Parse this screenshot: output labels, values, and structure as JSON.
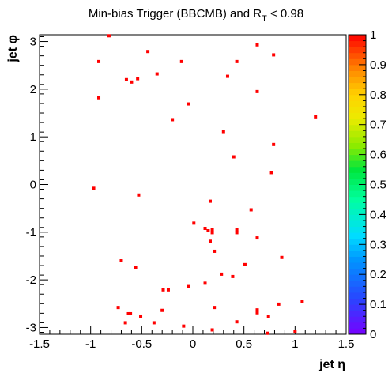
{
  "chart_data": {
    "type": "scatter",
    "title": {
      "prefix": "Min-bias Trigger (BBCMB) and R",
      "subscript": "T",
      "suffix": " < 0.98"
    },
    "xlabel": "jet η",
    "ylabel": "jet φ",
    "xlim": [
      -1.5,
      1.5
    ],
    "ylim": [
      -3.1416,
      3.1416
    ],
    "x_ticks": [
      -1.5,
      -1,
      -0.5,
      0,
      0.5,
      1,
      1.5
    ],
    "y_ticks": [
      -3,
      -2,
      -1,
      0,
      1,
      2,
      3
    ],
    "z_scale": {
      "min": 0,
      "max": 1,
      "ticks": [
        0,
        0.1,
        0.2,
        0.3,
        0.4,
        0.5,
        0.6,
        0.7,
        0.8,
        0.9,
        1
      ]
    },
    "grid": false,
    "marker_color": "#ff0000",
    "points": [
      {
        "x": -0.82,
        "y": 3.12
      },
      {
        "x": -0.92,
        "y": 2.58
      },
      {
        "x": -0.44,
        "y": 2.79
      },
      {
        "x": -0.11,
        "y": 2.58
      },
      {
        "x": 0.43,
        "y": 2.58
      },
      {
        "x": 0.63,
        "y": 2.93
      },
      {
        "x": 0.79,
        "y": 2.72
      },
      {
        "x": -0.65,
        "y": 2.2
      },
      {
        "x": -0.6,
        "y": 2.15
      },
      {
        "x": -0.54,
        "y": 2.22
      },
      {
        "x": -0.35,
        "y": 2.32
      },
      {
        "x": 0.34,
        "y": 2.27
      },
      {
        "x": -0.92,
        "y": 1.82
      },
      {
        "x": 0.63,
        "y": 1.95
      },
      {
        "x": -0.04,
        "y": 1.69
      },
      {
        "x": -0.2,
        "y": 1.36
      },
      {
        "x": 1.2,
        "y": 1.42
      },
      {
        "x": 0.3,
        "y": 1.11
      },
      {
        "x": 0.79,
        "y": 0.84
      },
      {
        "x": 0.4,
        "y": 0.58
      },
      {
        "x": 0.77,
        "y": 0.25
      },
      {
        "x": -0.97,
        "y": -0.08
      },
      {
        "x": -0.53,
        "y": -0.22
      },
      {
        "x": 0.17,
        "y": -0.35
      },
      {
        "x": 0.57,
        "y": -0.53
      },
      {
        "x": 0.01,
        "y": -0.81
      },
      {
        "x": 0.12,
        "y": -0.92
      },
      {
        "x": 0.15,
        "y": -0.97
      },
      {
        "x": 0.19,
        "y": -0.95
      },
      {
        "x": 0.19,
        "y": -1.01
      },
      {
        "x": 0.43,
        "y": -0.95
      },
      {
        "x": 0.43,
        "y": -1.01
      },
      {
        "x": 0.17,
        "y": -1.19
      },
      {
        "x": 0.63,
        "y": -1.12
      },
      {
        "x": 0.21,
        "y": -1.4
      },
      {
        "x": 0.51,
        "y": -1.68
      },
      {
        "x": -0.7,
        "y": -1.6
      },
      {
        "x": 0.87,
        "y": -1.53
      },
      {
        "x": -0.56,
        "y": -1.74
      },
      {
        "x": 0.28,
        "y": -1.88
      },
      {
        "x": 0.39,
        "y": -1.93
      },
      {
        "x": 0.12,
        "y": -2.07
      },
      {
        "x": -0.04,
        "y": -2.14
      },
      {
        "x": -0.29,
        "y": -2.21
      },
      {
        "x": -0.24,
        "y": -2.21
      },
      {
        "x": 1.07,
        "y": -2.46
      },
      {
        "x": 0.84,
        "y": -2.51
      },
      {
        "x": -0.73,
        "y": -2.58
      },
      {
        "x": 0.21,
        "y": -2.58
      },
      {
        "x": 0.63,
        "y": -2.63
      },
      {
        "x": 0.63,
        "y": -2.69
      },
      {
        "x": -0.3,
        "y": -2.64
      },
      {
        "x": -0.63,
        "y": -2.71
      },
      {
        "x": -0.61,
        "y": -2.71
      },
      {
        "x": -0.51,
        "y": -2.76
      },
      {
        "x": 0.74,
        "y": -2.77
      },
      {
        "x": 0.43,
        "y": -2.88
      },
      {
        "x": -0.66,
        "y": -2.9
      },
      {
        "x": -0.38,
        "y": -2.9
      },
      {
        "x": -0.09,
        "y": -2.97
      },
      {
        "x": 0.19,
        "y": -3.05
      },
      {
        "x": 0.73,
        "y": -3.12
      },
      {
        "x": 1.0,
        "y": -3.09
      }
    ]
  }
}
